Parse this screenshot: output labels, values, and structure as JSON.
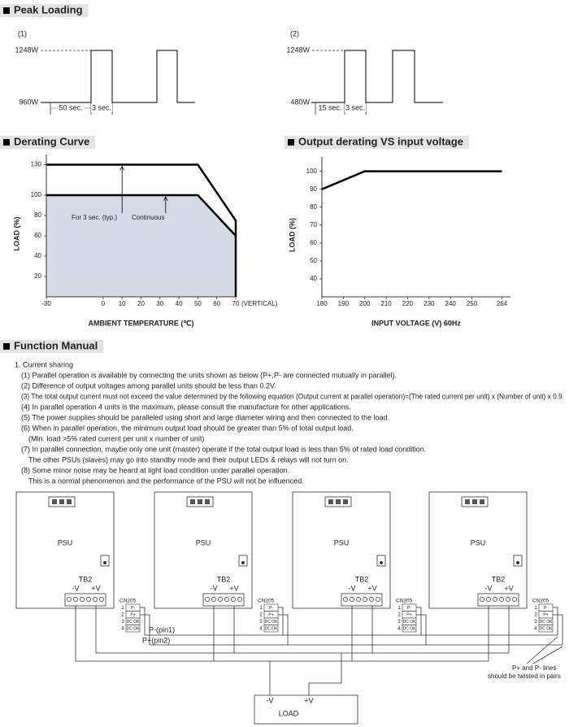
{
  "peak_loading": {
    "title": "Peak Loading",
    "panels": [
      {
        "label": "(1)",
        "high": "1248W",
        "low": "960W",
        "durations": [
          "50 sec.",
          "3 sec."
        ]
      },
      {
        "label": "(2)",
        "high": "1248W",
        "low": "480W",
        "durations": [
          "15 sec.",
          "3 sec."
        ]
      }
    ]
  },
  "chart_data": [
    {
      "type": "line",
      "title": "Derating Curve",
      "xlabel": "AMBIENT TEMPERATURE (℃)",
      "ylabel": "LOAD (%)",
      "x_note": "(VERTICAL)",
      "x": [
        -30,
        50,
        70,
        70
      ],
      "series": [
        {
          "name": "For 3 sec. (typ.)",
          "color": "#000000",
          "values": [
            130,
            130,
            75,
            0
          ]
        },
        {
          "name": "Continuous",
          "color": "#000000",
          "values": [
            100,
            100,
            60,
            null
          ]
        }
      ],
      "fill": "#d6dae6",
      "xlim": [
        -30,
        70
      ],
      "xticks": [
        -30,
        0,
        10,
        20,
        30,
        40,
        50,
        60,
        70
      ],
      "ylim": [
        0,
        140
      ],
      "yticks": [
        20,
        40,
        60,
        80,
        100,
        130
      ]
    },
    {
      "type": "line",
      "title": "Output derating VS input voltage",
      "xlabel": "INPUT VOLTAGE (V) 60Hz",
      "ylabel": "LOAD (%)",
      "x": [
        180,
        200,
        264
      ],
      "series": [
        {
          "color": "#000000",
          "values": [
            90,
            100,
            100
          ]
        }
      ],
      "xlim": [
        180,
        268
      ],
      "xticks": [
        180,
        190,
        200,
        210,
        220,
        230,
        240,
        250,
        264
      ],
      "ylim": [
        30,
        108
      ],
      "yticks": [
        40,
        50,
        60,
        70,
        80,
        90,
        100
      ]
    }
  ],
  "function_manual": {
    "title": "Function Manual",
    "heading": "1. Current sharing",
    "items": [
      [
        "(1) Parallel operation is available by connecting the units shown as below (P+,P- are connected mutually in parallel)."
      ],
      [
        "(2) Difference of output voltages among parallel units should be less than 0.2V."
      ],
      [
        "(3) The total output current must not exceed the value determined by the following equation (Output current at parallel operation)=(The rated current per unit) x (Number of unit) x 0.9."
      ],
      [
        "(4) In parallel operation 4 units is the maximum, please consult the manufacture for other applications."
      ],
      [
        "(5) The power supplies should be paralleled using short and large diameter wiring and then connected to the load."
      ],
      [
        "(6) When in parallel operation, the minimum output load should be greater than 5% of total output load.",
        "(Min. load >5% rated current per unit x number of unit)"
      ],
      [
        "(7) In parallel connection, maybe only one unit (master) operate if the total output load is less than 5% of rated load condition.",
        "The other PSUs (slaves) may go into standby mode and their output LEDs & relays will not turn on."
      ],
      [
        "(8) Some minor noise may be heard at light load condition under parallel operation.",
        "This is a normal phenomenon and the performance of the PSU will not be influenced."
      ]
    ]
  },
  "diagram": {
    "units": [
      {
        "psu": "PSU",
        "tb": "TB2",
        "minus": "-V",
        "plus": "+V",
        "connector": "CN205",
        "pins": [
          {
            "num": 1,
            "signal": "P-"
          },
          {
            "num": 2,
            "signal": "P+"
          },
          {
            "num": 3,
            "signal": "DC OK"
          },
          {
            "num": 4,
            "signal": "DC OK"
          }
        ]
      },
      {
        "psu": "PSU",
        "tb": "TB2",
        "minus": "-V",
        "plus": "+V",
        "connector": "CN205",
        "pins": [
          {
            "num": 1,
            "signal": "P-"
          },
          {
            "num": 2,
            "signal": "P+"
          },
          {
            "num": 3,
            "signal": "DC OK"
          },
          {
            "num": 4,
            "signal": "DC OK"
          }
        ]
      },
      {
        "psu": "PSU",
        "tb": "TB2",
        "minus": "-V",
        "plus": "+V",
        "connector": "CN205",
        "pins": [
          {
            "num": 1,
            "signal": "P-"
          },
          {
            "num": 2,
            "signal": "P+"
          },
          {
            "num": 3,
            "signal": "DC OK"
          },
          {
            "num": 4,
            "signal": "DC OK"
          }
        ]
      },
      {
        "psu": "PSU",
        "tb": "TB2",
        "minus": "-V",
        "plus": "+V",
        "connector": "CN205",
        "pins": [
          {
            "num": 1,
            "signal": "P-"
          },
          {
            "num": 2,
            "signal": "P+"
          },
          {
            "num": 3,
            "signal": "DC OK"
          },
          {
            "num": 4,
            "signal": "DC OK"
          }
        ]
      }
    ],
    "pin_notes": [
      "P-(pin1)",
      "P+(pin2)"
    ],
    "twist_note": [
      "P+ and P- lines",
      "should be twisted in pairs"
    ],
    "load": {
      "minus": "-V",
      "plus": "+V",
      "label": "LOAD"
    }
  }
}
